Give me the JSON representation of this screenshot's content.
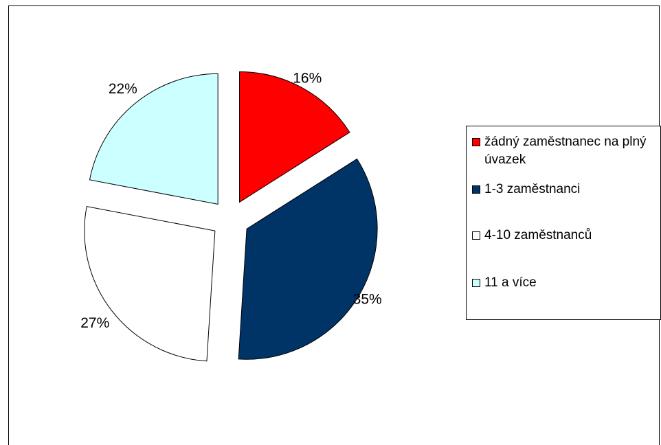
{
  "chart_data": {
    "type": "pie",
    "exploded": true,
    "legend_position": "right",
    "slices": [
      {
        "label": "žádný zaměstnanec na plný úvazek",
        "value": 16,
        "value_label": "16%",
        "color": "#FF0000"
      },
      {
        "label": "1-3 zaměstnanci",
        "value": 35,
        "value_label": "35%",
        "color": "#003366"
      },
      {
        "label": "4-10 zaměstnanců",
        "value": 27,
        "value_label": "27%",
        "color": "#FFFFFF"
      },
      {
        "label": "11 a více",
        "value": 22,
        "value_label": "22%",
        "color": "#CCFFFF"
      }
    ]
  }
}
